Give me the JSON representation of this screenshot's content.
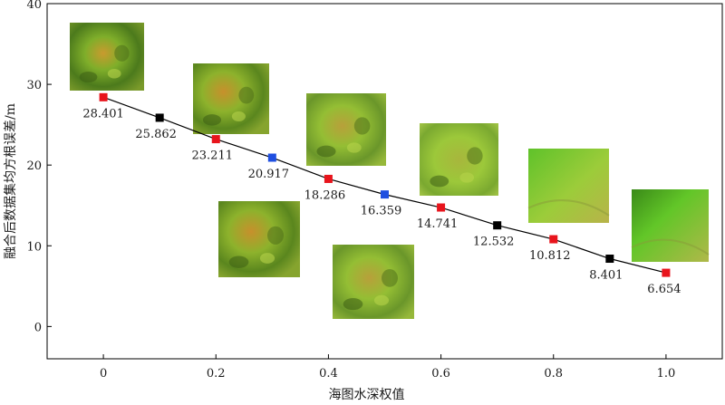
{
  "chart_data": {
    "type": "line",
    "xlabel": "海图水深权值",
    "ylabel": "融合后数据集均方根误差/m",
    "xlim": [
      -0.1,
      1.1
    ],
    "ylim": [
      -4,
      40
    ],
    "x_ticks": [
      "0",
      "0.2",
      "0.4",
      "0.6",
      "0.8",
      "1.0"
    ],
    "y_ticks": [
      "0",
      "10",
      "20",
      "30",
      "40"
    ],
    "grid": false,
    "legend": "none",
    "series": [
      {
        "x": [
          0,
          0.1,
          0.2,
          0.3,
          0.4,
          0.5,
          0.6,
          0.7,
          0.8,
          0.9,
          1.0
        ],
        "y": [
          28.401,
          25.862,
          23.211,
          20.917,
          18.286,
          16.359,
          14.741,
          12.532,
          10.812,
          8.401,
          6.654
        ],
        "labels": [
          "28.401",
          "25.862",
          "23.211",
          "20.917",
          "18.286",
          "16.359",
          "14.741",
          "12.532",
          "10.812",
          "8.401",
          "6.654"
        ],
        "marker_colors": [
          "#e8141c",
          "#000000",
          "#e8141c",
          "#1f4fe0",
          "#e8141c",
          "#1f4fe0",
          "#e8141c",
          "#000000",
          "#e8141c",
          "#000000",
          "#e8141c"
        ],
        "line_color": "#000000"
      }
    ],
    "inset_images": [
      {
        "name": "terrain-thumbnail-0",
        "weight": 0.0
      },
      {
        "name": "terrain-thumbnail-0.2",
        "weight": 0.2
      },
      {
        "name": "terrain-thumbnail-0.3",
        "weight": 0.3
      },
      {
        "name": "terrain-thumbnail-0.4",
        "weight": 0.4
      },
      {
        "name": "terrain-thumbnail-0.5",
        "weight": 0.5
      },
      {
        "name": "terrain-thumbnail-0.6",
        "weight": 0.6
      },
      {
        "name": "terrain-thumbnail-0.8",
        "weight": 0.8
      },
      {
        "name": "terrain-thumbnail-1.0",
        "weight": 1.0
      }
    ]
  }
}
